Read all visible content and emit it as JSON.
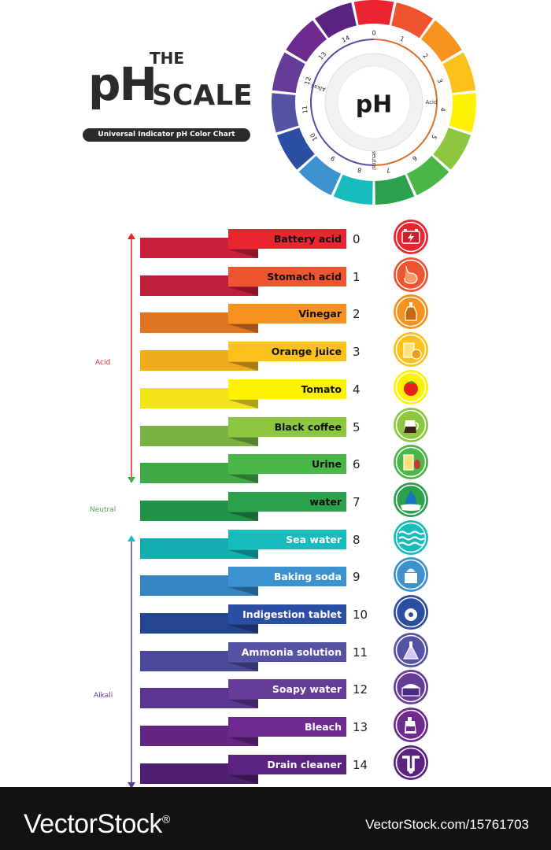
{
  "header": {
    "the": "THE",
    "ph": "pH",
    "scale": "SCALE",
    "subtitle": "Universal Indicator pH Color Chart"
  },
  "wheel": {
    "center_label": "pH",
    "acid_label": "Acid",
    "neutral_label": "Neutral",
    "alkali_label": "Alkali",
    "numbers": [
      "0",
      "1",
      "2",
      "3",
      "4",
      "5",
      "6",
      "7",
      "8",
      "9",
      "10",
      "11",
      "12",
      "13",
      "14"
    ]
  },
  "scale": {
    "acid_label": "Acid",
    "neutral_label": "Neutral",
    "alkali_label": "Alkali",
    "acid_color": "#e3262d",
    "neutral_color": "#4aa843",
    "alkali_color": "#5a3b98",
    "levels": [
      {
        "ph": "0",
        "label": "Battery acid",
        "icon": "battery-icon",
        "color": "#ea2530",
        "dark": "#c8203a"
      },
      {
        "ph": "1",
        "label": "Stomach acid",
        "icon": "stomach-icon",
        "color": "#ef5430",
        "dark": "#c01f3c"
      },
      {
        "ph": "2",
        "label": "Vinegar",
        "icon": "vinegar-bottle-icon",
        "color": "#f6931e",
        "dark": "#e2751f"
      },
      {
        "ph": "3",
        "label": "Orange juice",
        "icon": "orange-juice-icon",
        "color": "#fbc21b",
        "dark": "#efac1e"
      },
      {
        "ph": "4",
        "label": "Tomato",
        "icon": "tomato-icon",
        "color": "#fff200",
        "dark": "#f3e417"
      },
      {
        "ph": "5",
        "label": "Black coffee",
        "icon": "coffee-pot-icon",
        "color": "#8dc63f",
        "dark": "#7ab342"
      },
      {
        "ph": "6",
        "label": "Urine",
        "icon": "urine-sample-icon",
        "color": "#4bb748",
        "dark": "#40a844"
      },
      {
        "ph": "7",
        "label": "water",
        "icon": "water-drop-icon",
        "color": "#2aa14a",
        "dark": "#219348"
      },
      {
        "ph": "8",
        "label": "Sea water",
        "icon": "sea-wave-icon",
        "color": "#17bcbd",
        "dark": "#15aeb0"
      },
      {
        "ph": "9",
        "label": "Baking soda",
        "icon": "baking-soda-icon",
        "color": "#3c91cf",
        "dark": "#3585c3"
      },
      {
        "ph": "10",
        "label": "Indigestion tablet",
        "icon": "indigestion-tablet-icon",
        "color": "#2b4ea2",
        "dark": "#24468f"
      },
      {
        "ph": "11",
        "label": "Ammonia solution",
        "icon": "ammonia-flask-icon",
        "color": "#5453a4",
        "dark": "#4a4898"
      },
      {
        "ph": "12",
        "label": "Soapy water",
        "icon": "soapy-water-icon",
        "color": "#653c98",
        "dark": "#5b3590"
      },
      {
        "ph": "13",
        "label": "Bleach",
        "icon": "bleach-bottle-icon",
        "color": "#6e2a8e",
        "dark": "#632682"
      },
      {
        "ph": "14",
        "label": "Drain cleaner",
        "icon": "drain-cleaner-icon",
        "color": "#5a2380",
        "dark": "#4f1f72"
      }
    ]
  },
  "footer": {
    "brand": "VectorStock",
    "registered": "®",
    "image_id": "VectorStock.com/15761703"
  }
}
